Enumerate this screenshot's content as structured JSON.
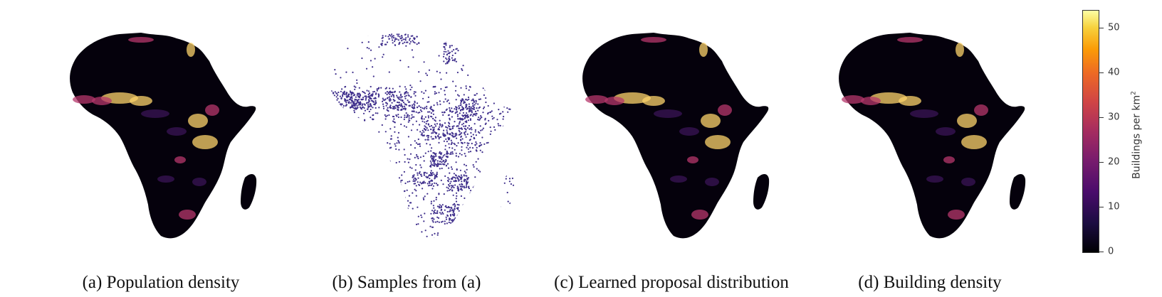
{
  "panels": [
    {
      "caption": "(a) Population density",
      "style": "heatmap"
    },
    {
      "caption": "(b) Samples from (a)",
      "style": "samples"
    },
    {
      "caption": "(c) Learned proposal distribution",
      "style": "heatmap"
    },
    {
      "caption": "(d) Building density",
      "style": "heatmap"
    }
  ],
  "colorbar": {
    "label": "Buildings per km",
    "label_sup": "2",
    "ticks": [
      "0",
      "10",
      "20",
      "30",
      "40",
      "50"
    ],
    "tick_values": [
      0,
      10,
      20,
      30,
      40,
      50
    ],
    "range": [
      0,
      54
    ],
    "colormap": "inferno"
  },
  "colors": {
    "land": "#05010c",
    "sample_dot": "#3f2f8c",
    "hot": "#fcd36b",
    "warm": "#b5376b",
    "dim": "#3a1456"
  }
}
